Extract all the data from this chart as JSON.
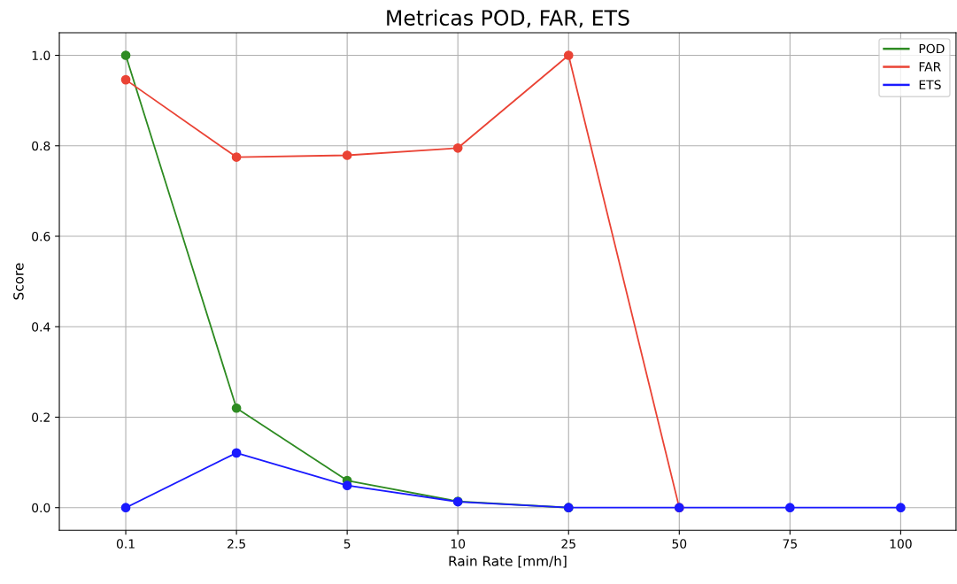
{
  "chart_data": {
    "type": "line",
    "title": "Metricas POD, FAR, ETS",
    "xlabel": "Rain Rate [mm/h]",
    "ylabel": "Score",
    "categories": [
      "0.1",
      "2.5",
      "5",
      "10",
      "25",
      "50",
      "75",
      "100"
    ],
    "series": [
      {
        "name": "POD",
        "color": "#2e8b22",
        "values": [
          1.0,
          0.22,
          0.06,
          0.014,
          0.0,
          null,
          null,
          null
        ]
      },
      {
        "name": "FAR",
        "color": "#ea4335",
        "values": [
          0.946,
          0.775,
          0.779,
          0.795,
          1.0,
          0.0,
          null,
          null
        ]
      },
      {
        "name": "ETS",
        "color": "#1a1aff",
        "values": [
          0.0,
          0.121,
          0.049,
          0.013,
          0.0,
          0.0,
          0.0,
          0.0
        ]
      }
    ],
    "ylim": [
      -0.05,
      1.05
    ],
    "yticks": [
      {
        "value": 0,
        "label": "0.0"
      },
      0.2,
      0.4,
      0.6,
      0.8,
      {
        "value": 1,
        "label": "1.0"
      }
    ],
    "grid": true,
    "legend": "top right",
    "marker": "circle",
    "line_style": "solid"
  }
}
